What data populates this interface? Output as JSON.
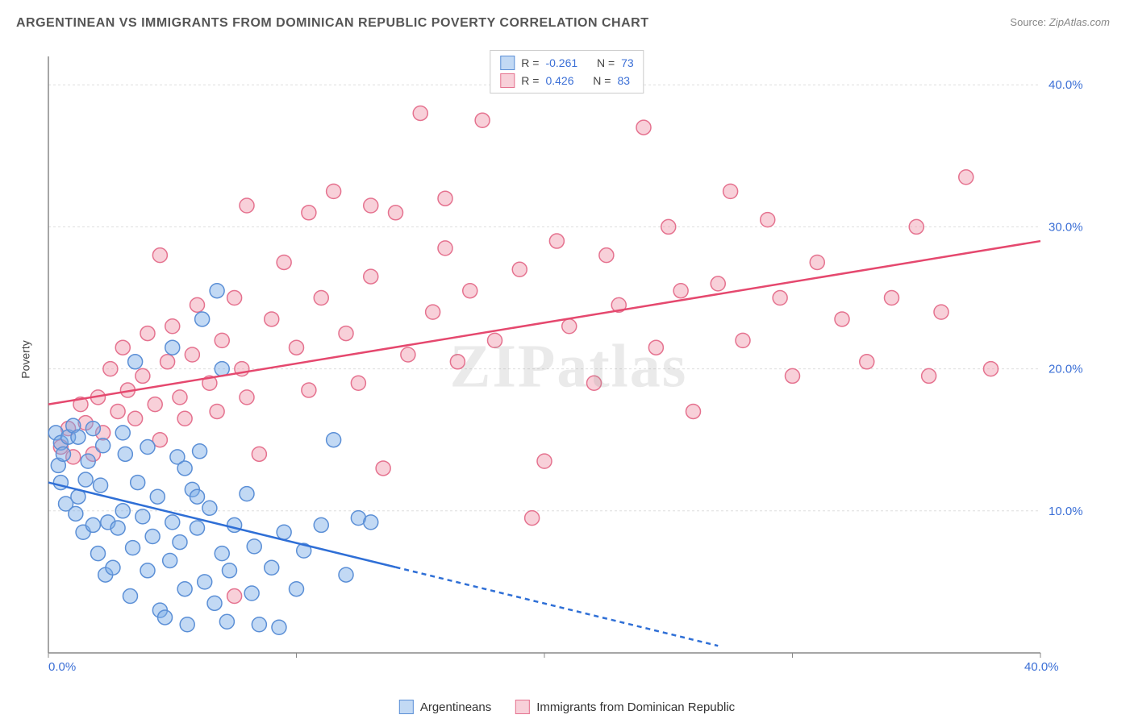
{
  "title": "ARGENTINEAN VS IMMIGRANTS FROM DOMINICAN REPUBLIC POVERTY CORRELATION CHART",
  "source_label": "Source:",
  "source_value": "ZipAtlas.com",
  "watermark": "ZIPatlas",
  "ylabel": "Poverty",
  "chart": {
    "type": "scatter",
    "xlim": [
      0,
      40
    ],
    "ylim": [
      0,
      42
    ],
    "x_ticks": [
      0,
      10,
      20,
      30,
      40
    ],
    "x_tick_labels": [
      "0.0%",
      "",
      "",
      "",
      "40.0%"
    ],
    "y_ticks": [
      10,
      20,
      30,
      40
    ],
    "y_tick_labels": [
      "10.0%",
      "20.0%",
      "30.0%",
      "40.0%"
    ],
    "tick_label_color": "#3b6fd6",
    "tick_fontsize": 15,
    "grid_color": "#dddddd",
    "axis_color": "#888888",
    "background": "#ffffff",
    "marker_radius": 9,
    "marker_stroke_width": 1.5,
    "trend_line_width": 2.5
  },
  "series": [
    {
      "id": "argentineans",
      "label": "Argentineans",
      "fill": "rgba(120,170,230,0.45)",
      "stroke": "#5b8fd6",
      "R": "-0.261",
      "N": "73",
      "trend": {
        "x1": 0,
        "y1": 12,
        "x2": 27,
        "y2": 0.5,
        "color": "#2f6fd6",
        "dash_after_x": 14
      },
      "points": [
        [
          0.3,
          15.5
        ],
        [
          0.5,
          14.8
        ],
        [
          0.4,
          13.2
        ],
        [
          0.6,
          14.0
        ],
        [
          0.8,
          15.2
        ],
        [
          0.5,
          12.0
        ],
        [
          0.7,
          10.5
        ],
        [
          1.0,
          16.0
        ],
        [
          1.2,
          11.0
        ],
        [
          1.1,
          9.8
        ],
        [
          1.5,
          12.2
        ],
        [
          1.4,
          8.5
        ],
        [
          1.8,
          9.0
        ],
        [
          1.6,
          13.5
        ],
        [
          2.0,
          7.0
        ],
        [
          2.1,
          11.8
        ],
        [
          2.4,
          9.2
        ],
        [
          2.3,
          5.5
        ],
        [
          2.8,
          8.8
        ],
        [
          2.6,
          6.0
        ],
        [
          3.0,
          10.0
        ],
        [
          3.1,
          14.0
        ],
        [
          3.4,
          7.4
        ],
        [
          3.3,
          4.0
        ],
        [
          3.8,
          9.6
        ],
        [
          3.6,
          12.0
        ],
        [
          4.0,
          5.8
        ],
        [
          4.2,
          8.2
        ],
        [
          4.5,
          3.0
        ],
        [
          4.4,
          11.0
        ],
        [
          4.9,
          6.5
        ],
        [
          4.7,
          2.5
        ],
        [
          5.0,
          9.2
        ],
        [
          5.2,
          13.8
        ],
        [
          5.5,
          4.5
        ],
        [
          5.3,
          7.8
        ],
        [
          5.8,
          11.5
        ],
        [
          5.6,
          2.0
        ],
        [
          6.0,
          8.8
        ],
        [
          6.3,
          5.0
        ],
        [
          6.1,
          14.2
        ],
        [
          6.7,
          3.5
        ],
        [
          6.5,
          10.2
        ],
        [
          7.0,
          7.0
        ],
        [
          7.2,
          2.2
        ],
        [
          7.5,
          9.0
        ],
        [
          7.3,
          5.8
        ],
        [
          8.0,
          11.2
        ],
        [
          8.2,
          4.2
        ],
        [
          8.5,
          2.0
        ],
        [
          8.3,
          7.5
        ],
        [
          9.0,
          6.0
        ],
        [
          9.3,
          1.8
        ],
        [
          9.5,
          8.5
        ],
        [
          10.0,
          4.5
        ],
        [
          10.3,
          7.2
        ],
        [
          11.0,
          9.0
        ],
        [
          11.5,
          15.0
        ],
        [
          12.0,
          5.5
        ],
        [
          12.5,
          9.5
        ],
        [
          13.0,
          9.2
        ],
        [
          3.5,
          20.5
        ],
        [
          5.0,
          21.5
        ],
        [
          6.8,
          25.5
        ],
        [
          7.0,
          20.0
        ],
        [
          6.2,
          23.5
        ],
        [
          1.2,
          15.2
        ],
        [
          1.8,
          15.8
        ],
        [
          2.2,
          14.6
        ],
        [
          3.0,
          15.5
        ],
        [
          4.0,
          14.5
        ],
        [
          5.5,
          13.0
        ],
        [
          6.0,
          11.0
        ]
      ]
    },
    {
      "id": "dominican",
      "label": "Immigrants from Dominican Republic",
      "fill": "rgba(240,150,170,0.45)",
      "stroke": "#e5728f",
      "R": "0.426",
      "N": "83",
      "trend": {
        "x1": 0,
        "y1": 17.5,
        "x2": 40,
        "y2": 29,
        "color": "#e5486e",
        "dash_after_x": 40
      },
      "points": [
        [
          0.5,
          14.5
        ],
        [
          0.8,
          15.8
        ],
        [
          1.0,
          13.8
        ],
        [
          1.3,
          17.5
        ],
        [
          1.5,
          16.2
        ],
        [
          1.8,
          14.0
        ],
        [
          2.0,
          18.0
        ],
        [
          2.2,
          15.5
        ],
        [
          2.5,
          20.0
        ],
        [
          2.8,
          17.0
        ],
        [
          3.0,
          21.5
        ],
        [
          3.2,
          18.5
        ],
        [
          3.5,
          16.5
        ],
        [
          3.8,
          19.5
        ],
        [
          4.0,
          22.5
        ],
        [
          4.3,
          17.5
        ],
        [
          4.5,
          15.0
        ],
        [
          4.8,
          20.5
        ],
        [
          5.0,
          23.0
        ],
        [
          5.3,
          18.0
        ],
        [
          5.5,
          16.5
        ],
        [
          5.8,
          21.0
        ],
        [
          6.0,
          24.5
        ],
        [
          6.5,
          19.0
        ],
        [
          6.8,
          17.0
        ],
        [
          7.0,
          22.0
        ],
        [
          7.5,
          25.0
        ],
        [
          7.8,
          20.0
        ],
        [
          8.0,
          18.0
        ],
        [
          8.5,
          14.0
        ],
        [
          9.0,
          23.5
        ],
        [
          9.5,
          27.5
        ],
        [
          10.0,
          21.5
        ],
        [
          10.5,
          18.5
        ],
        [
          11.0,
          25.0
        ],
        [
          11.5,
          32.5
        ],
        [
          12.0,
          22.5
        ],
        [
          12.5,
          19.0
        ],
        [
          13.0,
          26.5
        ],
        [
          13.5,
          13.0
        ],
        [
          14.0,
          31.0
        ],
        [
          14.5,
          21.0
        ],
        [
          15.0,
          38.0
        ],
        [
          15.5,
          24.0
        ],
        [
          16.0,
          28.5
        ],
        [
          16.5,
          20.5
        ],
        [
          17.0,
          25.5
        ],
        [
          17.5,
          37.5
        ],
        [
          18.0,
          22.0
        ],
        [
          19.0,
          27.0
        ],
        [
          19.5,
          9.5
        ],
        [
          20.0,
          13.5
        ],
        [
          20.5,
          29.0
        ],
        [
          21.0,
          23.0
        ],
        [
          22.0,
          19.0
        ],
        [
          22.5,
          28.0
        ],
        [
          23.0,
          24.5
        ],
        [
          24.0,
          37.0
        ],
        [
          24.5,
          21.5
        ],
        [
          25.0,
          30.0
        ],
        [
          25.5,
          25.5
        ],
        [
          26.0,
          17.0
        ],
        [
          27.0,
          26.0
        ],
        [
          27.5,
          32.5
        ],
        [
          28.0,
          22.0
        ],
        [
          29.0,
          30.5
        ],
        [
          29.5,
          25.0
        ],
        [
          30.0,
          19.5
        ],
        [
          31.0,
          27.5
        ],
        [
          32.0,
          23.5
        ],
        [
          33.0,
          20.5
        ],
        [
          34.0,
          25.0
        ],
        [
          35.0,
          30.0
        ],
        [
          35.5,
          19.5
        ],
        [
          36.0,
          24.0
        ],
        [
          37.0,
          33.5
        ],
        [
          38.0,
          20.0
        ],
        [
          7.5,
          4.0
        ],
        [
          8.0,
          31.5
        ],
        [
          10.5,
          31.0
        ],
        [
          13.0,
          31.5
        ],
        [
          16.0,
          32.0
        ],
        [
          4.5,
          28.0
        ]
      ]
    }
  ],
  "top_legend": {
    "R_label": "R =",
    "N_label": "N ="
  }
}
